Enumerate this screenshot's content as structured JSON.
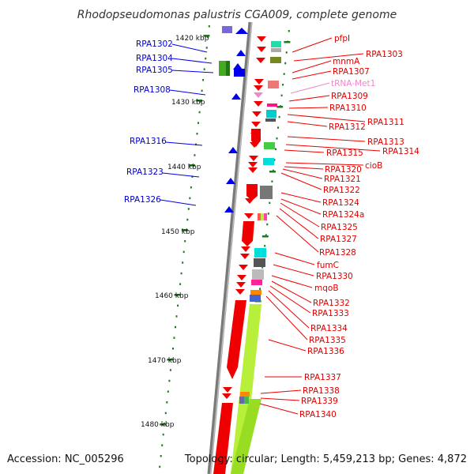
{
  "title": "Rhodopseudomonas palustris CGA009, complete genome",
  "accession": "Accession: NC_005296",
  "topology": "Topology: circular; Length: 5,459,213 bp; Genes: 4,872",
  "scale_labels": [
    "1420 kbp",
    "1430 kbp",
    "1440 kbp",
    "1450 kbp",
    "1460 kbp",
    "1470 kbp",
    "1480 kbp"
  ],
  "left_genes": [
    "RPA1302",
    "RPA1304",
    "RPA1305",
    "RPA1308",
    "RPA1316",
    "RPA1323",
    "RPA1326"
  ],
  "right_genes": [
    "pfpI",
    "RPA1303",
    "mnmA",
    "RPA1307",
    "tRNA-Met1",
    "RPA1309",
    "RPA1310",
    "RPA1311",
    "RPA1312",
    "RPA1313",
    "RPA1314",
    "RPA1315",
    "cioB",
    "RPA1320",
    "RPA1321",
    "RPA1322",
    "RPA1324",
    "RPA1324a",
    "RPA1325",
    "RPA1327",
    "RPA1328",
    "fumC",
    "RPA1330",
    "mqoB",
    "RPA1332",
    "RPA1333",
    "RPA1334",
    "RPA1335",
    "RPA1336",
    "RPA1337",
    "RPA1338",
    "RPA1339",
    "RPA1340"
  ],
  "colors": {
    "forward_strand": "#0000ee",
    "reverse_strand": "#ee0000",
    "trna": "#ee88cc",
    "backbone": "#888888",
    "ticks": "#227722"
  }
}
